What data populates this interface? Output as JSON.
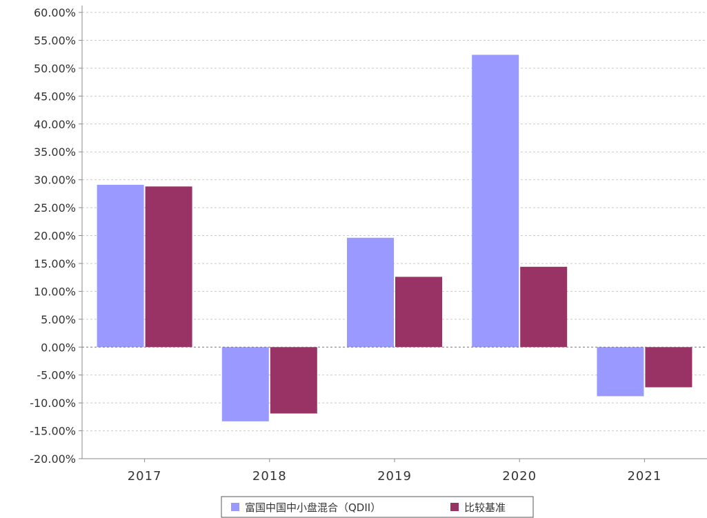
{
  "chart_data": {
    "type": "bar",
    "title": "",
    "xlabel": "",
    "ylabel": "",
    "categories": [
      "2017",
      "2018",
      "2019",
      "2020",
      "2021"
    ],
    "series": [
      {
        "name": "富国中国中小盘混合（QDII）",
        "color": "#9999ff",
        "values": [
          29.1,
          -13.3,
          19.6,
          52.4,
          -8.8
        ]
      },
      {
        "name": "比较基准",
        "color": "#993366",
        "values": [
          28.8,
          -11.9,
          12.6,
          14.4,
          -7.2
        ]
      }
    ],
    "ylim": [
      -20,
      60
    ],
    "y_ticks": [
      "-20.00%",
      "-15.00%",
      "-10.00%",
      "-5.00%",
      "0.00%",
      "5.00%",
      "10.00%",
      "15.00%",
      "20.00%",
      "25.00%",
      "30.00%",
      "35.00%",
      "40.00%",
      "45.00%",
      "50.00%",
      "55.00%",
      "60.00%"
    ],
    "grid": true,
    "legend_position": "bottom-center"
  }
}
